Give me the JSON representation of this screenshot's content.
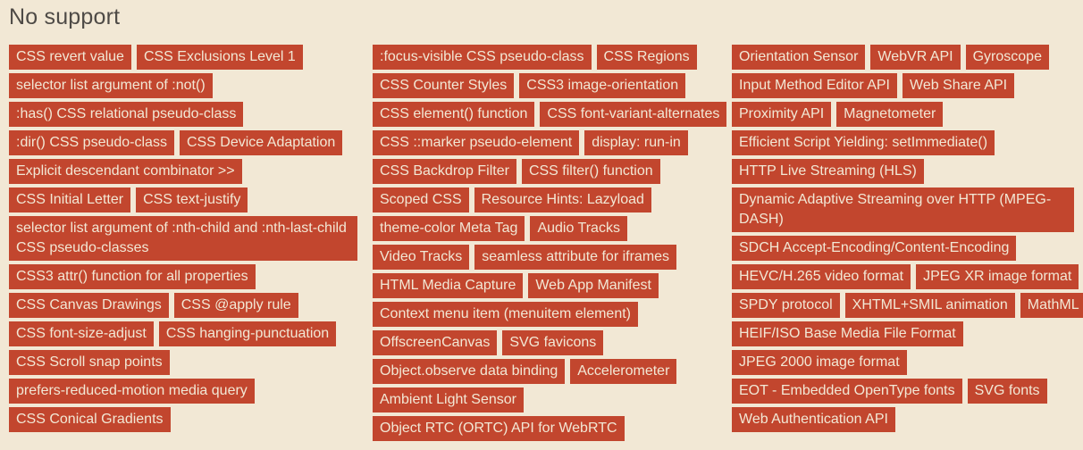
{
  "heading": "No support",
  "colors": {
    "background": "#f2e8d5",
    "tag_background": "#c2462e",
    "tag_text": "#f2e8d5",
    "heading_text": "#4e4a46"
  },
  "columns": [
    {
      "rows": [
        [
          "CSS revert value",
          "CSS Exclusions Level 1"
        ],
        [
          "selector list argument of :not()"
        ],
        [
          ":has() CSS relational pseudo-class"
        ],
        [
          ":dir() CSS pseudo-class",
          "CSS Device Adaptation"
        ],
        [
          "Explicit descendant combinator >>"
        ],
        [
          "CSS Initial Letter",
          "CSS text-justify"
        ],
        [
          "selector list argument of :nth-child and :nth-last-child CSS pseudo-classes"
        ],
        [
          "CSS3 attr() function for all properties"
        ],
        [
          "CSS Canvas Drawings",
          "CSS @apply rule"
        ],
        [
          "CSS font-size-adjust",
          "CSS hanging-punctuation"
        ],
        [
          "CSS Scroll snap points"
        ],
        [
          "prefers-reduced-motion media query"
        ],
        [
          "CSS Conical Gradients"
        ]
      ]
    },
    {
      "rows": [
        [
          ":focus-visible CSS pseudo-class",
          "CSS Regions"
        ],
        [
          "CSS Counter Styles",
          "CSS3 image-orientation"
        ],
        [
          "CSS element() function",
          "CSS font-variant-alternates"
        ],
        [
          "CSS ::marker pseudo-element",
          "display: run-in"
        ],
        [
          "CSS Backdrop Filter",
          "CSS filter() function"
        ],
        [
          "Scoped CSS",
          "Resource Hints: Lazyload"
        ],
        [
          "theme-color Meta Tag",
          "Audio Tracks"
        ],
        [
          "Video Tracks",
          "seamless attribute for iframes"
        ],
        [
          "HTML Media Capture",
          "Web App Manifest"
        ],
        [
          "Context menu item (menuitem element)"
        ],
        [
          "OffscreenCanvas",
          "SVG favicons"
        ],
        [
          "Object.observe data binding",
          "Accelerometer"
        ],
        [
          "Ambient Light Sensor"
        ],
        [
          "Object RTC (ORTC) API for WebRTC"
        ]
      ]
    },
    {
      "rows": [
        [
          "Orientation Sensor",
          "WebVR API",
          "Gyroscope"
        ],
        [
          "Input Method Editor API",
          "Web Share API"
        ],
        [
          "Proximity API",
          "Magnetometer"
        ],
        [
          "Efficient Script Yielding: setImmediate()"
        ],
        [
          "HTTP Live Streaming (HLS)"
        ],
        [
          "Dynamic Adaptive Streaming over HTTP (MPEG-DASH)"
        ],
        [
          "SDCH Accept-Encoding/Content-Encoding"
        ],
        [
          "HEVC/H.265 video format",
          "JPEG XR image format"
        ],
        [
          "SPDY protocol",
          "XHTML+SMIL animation",
          "MathML"
        ],
        [
          "HEIF/ISO Base Media File Format"
        ],
        [
          "JPEG 2000 image format"
        ],
        [
          "EOT - Embedded OpenType fonts",
          "SVG fonts"
        ],
        [
          "Web Authentication API"
        ]
      ]
    }
  ]
}
